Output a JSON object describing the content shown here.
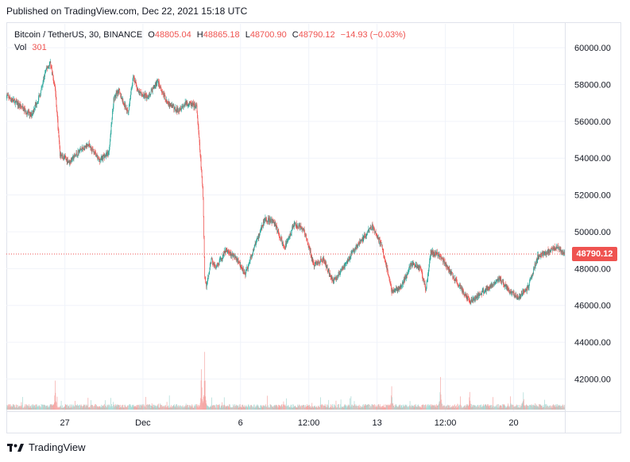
{
  "published": "Published on TradingView.com, Dec 22, 2021 15:18 UTC",
  "legend": {
    "symbol": "Bitcoin / TetherUS, 30, BINANCE",
    "open_label": "O",
    "open": "48805.04",
    "high_label": "H",
    "high": "48865.18",
    "low_label": "L",
    "low": "48700.90",
    "close_label": "C",
    "close": "48790.12",
    "change": "−14.93 (−0.03%)",
    "vol_label": "Vol",
    "vol": "301"
  },
  "footer": {
    "brand": "TradingView",
    "logo_icon": "tradingview-logo-icon"
  },
  "colors": {
    "up": "#26a69a",
    "down": "#ef5350",
    "up_volume": "#a7d9d4",
    "down_volume": "#f5a8a6",
    "grid": "#f0f3fa",
    "axis_text": "#131722",
    "last_price_line": "#ef5350"
  },
  "chart_data": {
    "type": "candlestick",
    "instrument": "Bitcoin / TetherUS",
    "interval": "30",
    "exchange": "BINANCE",
    "last_price": "48790.12",
    "last_price_value": 48790.12,
    "y_ticks": [
      "42000.00",
      "44000.00",
      "46000.00",
      "48000.00",
      "50000.00",
      "52000.00",
      "54000.00",
      "56000.00",
      "58000.00",
      "60000.00"
    ],
    "y_tick_values": [
      42000,
      44000,
      46000,
      48000,
      50000,
      52000,
      54000,
      56000,
      58000,
      60000
    ],
    "ylim": [
      40250,
      61300
    ],
    "x_ticks": [
      "27",
      "Dec",
      "6",
      "12:00",
      "13",
      "12:00",
      "20"
    ],
    "x_tick_dates": [
      "2021-11-27",
      "2021-12-01",
      "2021-12-06",
      "2021-12-09 12:00",
      "2021-12-13",
      "2021-12-16 12:00",
      "2021-12-20"
    ],
    "x_range": [
      "2021-11-24",
      "2021-12-22 15:00"
    ],
    "grid": true,
    "price_path": [
      [
        "2021-11-24 00:00",
        57400
      ],
      [
        "2021-11-24 18:00",
        56800
      ],
      [
        "2021-11-25 06:00",
        56300
      ],
      [
        "2021-11-25 18:00",
        57500
      ],
      [
        "2021-11-26 00:00",
        58700
      ],
      [
        "2021-11-26 06:00",
        59200
      ],
      [
        "2021-11-26 12:00",
        57800
      ],
      [
        "2021-11-26 18:00",
        54200
      ],
      [
        "2021-11-27 06:00",
        53800
      ],
      [
        "2021-11-27 18:00",
        54400
      ],
      [
        "2021-11-28 06:00",
        54700
      ],
      [
        "2021-11-28 18:00",
        53900
      ],
      [
        "2021-11-29 06:00",
        54300
      ],
      [
        "2021-11-29 12:00",
        57200
      ],
      [
        "2021-11-29 18:00",
        57700
      ],
      [
        "2021-11-30 00:00",
        57000
      ],
      [
        "2021-11-30 06:00",
        56500
      ],
      [
        "2021-11-30 12:00",
        58500
      ],
      [
        "2021-11-30 18:00",
        57600
      ],
      [
        "2021-12-01 06:00",
        57300
      ],
      [
        "2021-12-01 18:00",
        58200
      ],
      [
        "2021-12-02 06:00",
        57000
      ],
      [
        "2021-12-02 18:00",
        56600
      ],
      [
        "2021-12-03 06:00",
        57000
      ],
      [
        "2021-12-03 18:00",
        56800
      ],
      [
        "2021-12-04 00:00",
        53300
      ],
      [
        "2021-12-04 02:00",
        51900
      ],
      [
        "2021-12-04 04:00",
        47500
      ],
      [
        "2021-12-04 06:00",
        47000
      ],
      [
        "2021-12-04 12:00",
        48500
      ],
      [
        "2021-12-04 18:00",
        48000
      ],
      [
        "2021-12-05 06:00",
        49000
      ],
      [
        "2021-12-05 18:00",
        48600
      ],
      [
        "2021-12-06 06:00",
        47700
      ],
      [
        "2021-12-06 18:00",
        49300
      ],
      [
        "2021-12-07 06:00",
        50700
      ],
      [
        "2021-12-07 18:00",
        50500
      ],
      [
        "2021-12-08 06:00",
        49100
      ],
      [
        "2021-12-08 18:00",
        50400
      ],
      [
        "2021-12-09 06:00",
        50100
      ],
      [
        "2021-12-09 18:00",
        48200
      ],
      [
        "2021-12-10 06:00",
        48500
      ],
      [
        "2021-12-10 18:00",
        47300
      ],
      [
        "2021-12-11 06:00",
        48000
      ],
      [
        "2021-12-11 18:00",
        48900
      ],
      [
        "2021-12-12 06:00",
        49600
      ],
      [
        "2021-12-12 18:00",
        50300
      ],
      [
        "2021-12-13 06:00",
        49200
      ],
      [
        "2021-12-13 18:00",
        46800
      ],
      [
        "2021-12-14 06:00",
        47000
      ],
      [
        "2021-12-14 18:00",
        48300
      ],
      [
        "2021-12-15 06:00",
        48000
      ],
      [
        "2021-12-15 12:00",
        46800
      ],
      [
        "2021-12-15 18:00",
        48900
      ],
      [
        "2021-12-16 06:00",
        48700
      ],
      [
        "2021-12-16 18:00",
        47800
      ],
      [
        "2021-12-17 06:00",
        47000
      ],
      [
        "2021-12-17 18:00",
        46200
      ],
      [
        "2021-12-18 06:00",
        46600
      ],
      [
        "2021-12-18 18:00",
        47000
      ],
      [
        "2021-12-19 06:00",
        47500
      ],
      [
        "2021-12-19 18:00",
        46800
      ],
      [
        "2021-12-20 06:00",
        46400
      ],
      [
        "2021-12-20 18:00",
        47000
      ],
      [
        "2021-12-21 06:00",
        48700
      ],
      [
        "2021-12-21 18:00",
        48900
      ],
      [
        "2021-12-22 06:00",
        49200
      ],
      [
        "2021-12-22 15:00",
        48790
      ]
    ],
    "volume": {
      "label": "Vol",
      "last_value": 301,
      "spikes": [
        [
          "2021-11-26 12:00",
          3.2
        ],
        [
          "2021-12-04 00:00",
          4.8
        ],
        [
          "2021-12-04 04:00",
          7.0
        ],
        [
          "2021-12-13 18:00",
          2.5
        ],
        [
          "2021-12-16 06:00",
          3.6
        ],
        [
          "2021-12-17 18:00",
          2.0
        ],
        [
          "2021-12-20 12:00",
          1.5
        ]
      ]
    }
  }
}
